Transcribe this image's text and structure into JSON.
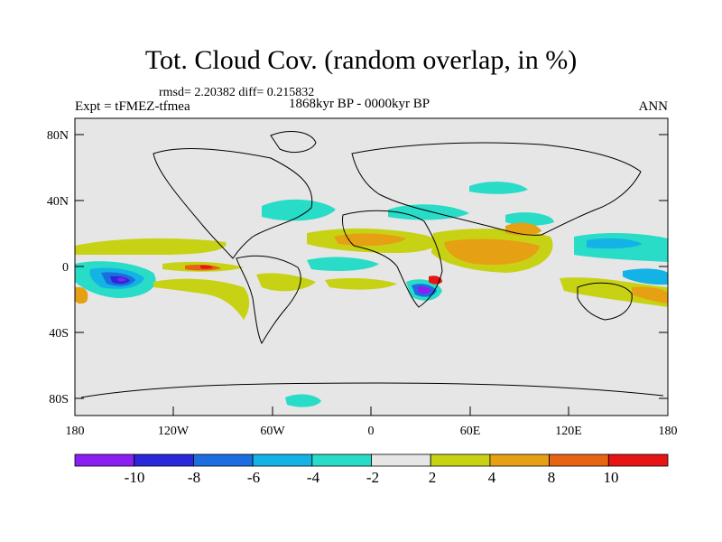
{
  "map": {
    "title": "Tot. Cloud Cov. (random overlap, in %)",
    "stats": "rmsd= 2.20382 diff= 0.215832",
    "experiment": "Expt = tFMEZ-tfmea",
    "period": "1868kyr BP - 0000kyr BP",
    "season": "ANN",
    "lat_ticks": [
      "80N",
      "40N",
      "0",
      "40S",
      "80S"
    ],
    "lon_ticks": [
      "180",
      "120W",
      "60W",
      "0",
      "60E",
      "120E",
      "180"
    ]
  },
  "colorbar": {
    "labels": [
      "-10",
      "-8",
      "-6",
      "-4",
      "-2",
      "2",
      "4",
      "8",
      "10"
    ],
    "colors": [
      "#8a1ff2",
      "#2a26d9",
      "#1c6ee0",
      "#14b3e6",
      "#28dcc8",
      "#e6e6e6",
      "#c8d214",
      "#e6a014",
      "#e66414",
      "#e61414"
    ]
  }
}
